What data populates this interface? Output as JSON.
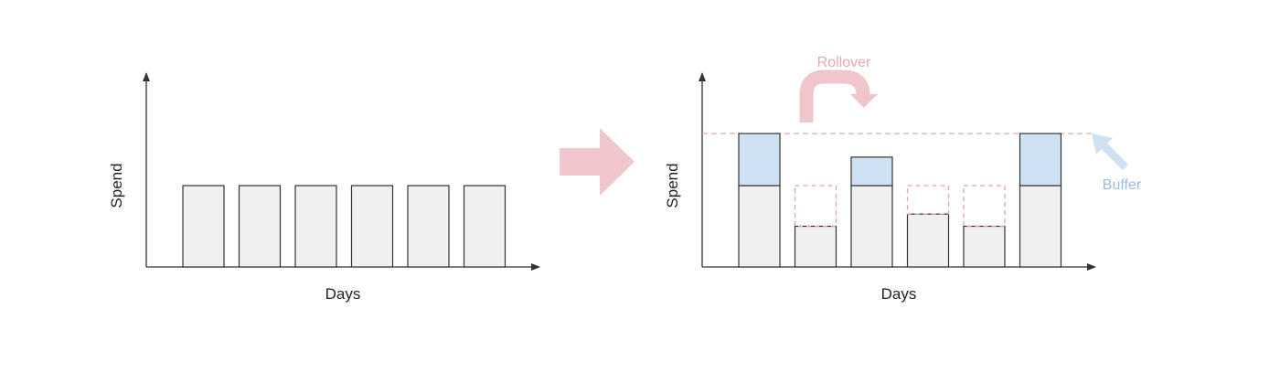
{
  "left_panel": {
    "y_axis_label": "Spend",
    "x_axis_label": "Days",
    "days": [
      {
        "spend": 1.0
      },
      {
        "spend": 1.0
      },
      {
        "spend": 1.0
      },
      {
        "spend": 1.0
      },
      {
        "spend": 1.0
      },
      {
        "spend": 1.0
      }
    ]
  },
  "right_panel": {
    "y_axis_label": "Spend",
    "x_axis_label": "Days",
    "threshold_level": 1.64,
    "days": [
      {
        "spend": 1.0,
        "buffer": 0.64,
        "unspent": 0
      },
      {
        "spend": 0.5,
        "buffer": 0,
        "unspent": 0.5
      },
      {
        "spend": 1.0,
        "buffer": 0.35,
        "unspent": 0
      },
      {
        "spend": 0.65,
        "buffer": 0,
        "unspent": 0.35
      },
      {
        "spend": 0.5,
        "buffer": 0,
        "unspent": 0.5
      },
      {
        "spend": 1.0,
        "buffer": 0.64,
        "unspent": 0
      }
    ],
    "rollover_label": "Rollover",
    "buffer_label": "Buffer"
  },
  "colors": {
    "bar_fill": "#f0f0f0",
    "outline": "#333333",
    "buffer_fill": "#cfe2f3",
    "rollover_accent": "#f1c6ca",
    "rollover_text": "#e7a8b0",
    "buffer_accent": "#cfe2f3",
    "buffer_text": "#9fbcd9",
    "threshold_line": "#d9a5b3",
    "deficit_dash": "#e3a0ab",
    "transition_arrow": "#f2c7cb"
  }
}
